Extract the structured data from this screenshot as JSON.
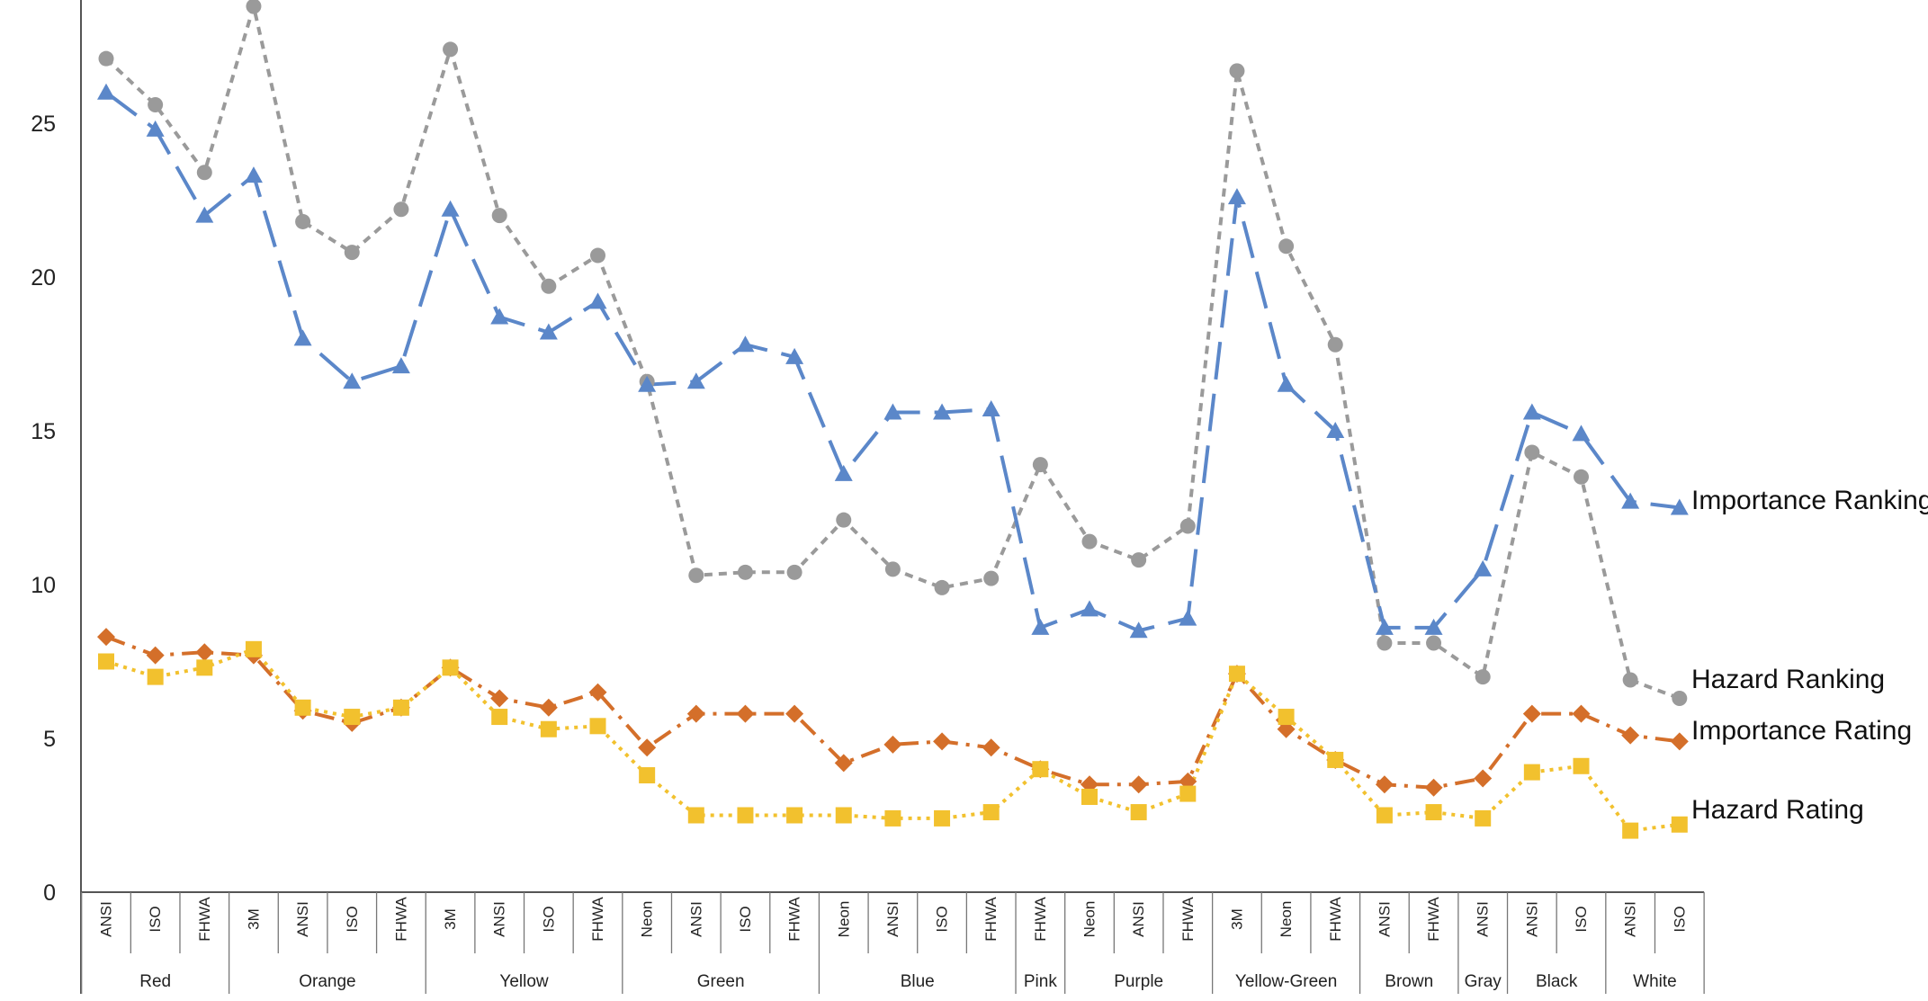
{
  "chart_data": {
    "type": "line",
    "title": "",
    "xlabel": "",
    "ylabel": "",
    "ylim": [
      0,
      28
    ],
    "yticks": [
      0,
      5,
      10,
      15,
      20,
      25
    ],
    "grid": false,
    "categories": [
      "ANSI",
      "ISO",
      "FHWA",
      "3M",
      "ANSI",
      "ISO",
      "FHWA",
      "3M",
      "ANSI",
      "ISO",
      "FHWA",
      "Neon",
      "ANSI",
      "ISO",
      "FHWA",
      "Neon",
      "ANSI",
      "ISO",
      "FHWA",
      "FHWA",
      "Neon",
      "ANSI",
      "FHWA",
      "3M",
      "Neon",
      "FHWA",
      "ANSI",
      "FHWA",
      "ANSI",
      "ANSI",
      "ISO",
      "ANSI",
      "ISO"
    ],
    "groups": [
      {
        "name": "Red",
        "count": 3
      },
      {
        "name": "Orange",
        "count": 4
      },
      {
        "name": "Yellow",
        "count": 4
      },
      {
        "name": "Green",
        "count": 4
      },
      {
        "name": "Blue",
        "count": 4
      },
      {
        "name": "Pink",
        "count": 1
      },
      {
        "name": "Purple",
        "count": 3
      },
      {
        "name": "Yellow-Green",
        "count": 3
      },
      {
        "name": "Brown",
        "count": 2
      },
      {
        "name": "Gray",
        "count": 1
      },
      {
        "name": "Black",
        "count": 2
      },
      {
        "name": "White",
        "count": 2
      }
    ],
    "series": [
      {
        "name": "Hazard Ranking",
        "color": "#9a9a9a",
        "marker": "circle",
        "dash": "dotted-short",
        "values": [
          27.1,
          25.6,
          23.4,
          28.8,
          21.8,
          20.8,
          22.2,
          27.4,
          22.0,
          19.7,
          20.7,
          16.6,
          10.3,
          10.4,
          10.4,
          12.1,
          10.5,
          9.9,
          10.2,
          13.9,
          11.4,
          10.8,
          11.9,
          26.7,
          21.0,
          17.8,
          8.1,
          8.1,
          7.0,
          14.3,
          13.5,
          6.9,
          6.3
        ]
      },
      {
        "name": "Importance Ranking",
        "color": "#5b87c9",
        "marker": "triangle",
        "dash": "long",
        "values": [
          26.0,
          24.8,
          22.0,
          23.3,
          18.0,
          16.6,
          17.1,
          22.2,
          18.7,
          18.2,
          19.2,
          16.5,
          16.6,
          17.8,
          17.4,
          13.6,
          15.6,
          15.6,
          15.7,
          8.6,
          9.2,
          8.5,
          8.9,
          22.6,
          16.5,
          15.0,
          8.6,
          8.6,
          10.5,
          15.6,
          14.9,
          12.7,
          12.5
        ]
      },
      {
        "name": "Importance Rating",
        "color": "#d46f2a",
        "marker": "diamond",
        "dash": "dash-dot",
        "values": [
          8.3,
          7.7,
          7.8,
          7.7,
          5.9,
          5.5,
          6.0,
          7.3,
          6.3,
          6.0,
          6.5,
          4.7,
          5.8,
          5.8,
          5.8,
          4.2,
          4.8,
          4.9,
          4.7,
          4.0,
          3.5,
          3.5,
          3.6,
          7.1,
          5.3,
          4.3,
          3.5,
          3.4,
          3.7,
          5.8,
          5.8,
          5.1,
          4.9
        ]
      },
      {
        "name": "Hazard Rating",
        "color": "#f2c12e",
        "marker": "square",
        "dash": "dotted",
        "values": [
          7.5,
          7.0,
          7.3,
          7.9,
          6.0,
          5.7,
          6.0,
          7.3,
          5.7,
          5.3,
          5.4,
          3.8,
          2.5,
          2.5,
          2.5,
          2.5,
          2.4,
          2.4,
          2.6,
          4.0,
          3.1,
          2.6,
          3.2,
          7.1,
          5.7,
          4.3,
          2.5,
          2.6,
          2.4,
          3.9,
          4.1,
          2.0,
          2.2
        ]
      }
    ],
    "legend": "right-end inline labels"
  }
}
